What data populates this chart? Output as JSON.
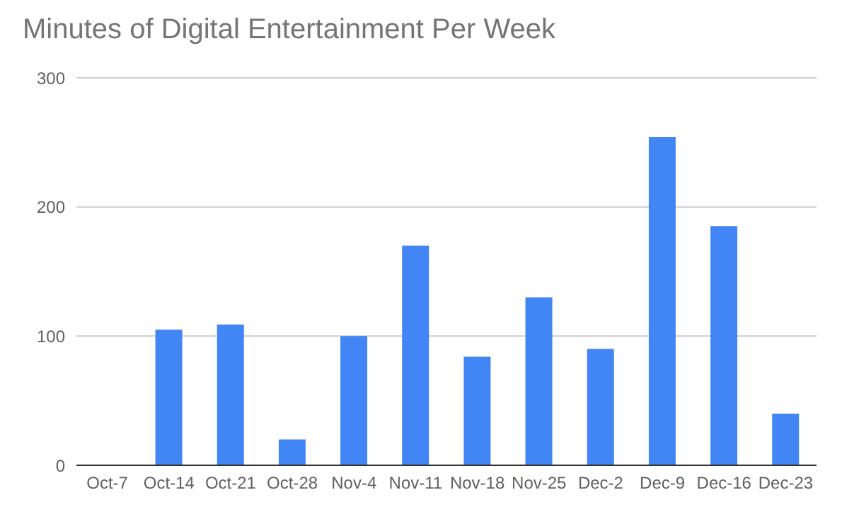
{
  "chart_data": {
    "type": "bar",
    "title": "Minutes of Digital Entertainment Per Week",
    "categories": [
      "Oct-7",
      "Oct-14",
      "Oct-21",
      "Oct-28",
      "Nov-4",
      "Nov-11",
      "Nov-18",
      "Nov-25",
      "Dec-2",
      "Dec-9",
      "Dec-16",
      "Dec-23"
    ],
    "values": [
      0,
      105,
      109,
      20,
      100,
      170,
      84,
      130,
      90,
      254,
      185,
      40
    ],
    "color": "#4285f4",
    "ylim": [
      0,
      300
    ],
    "yticks": [
      0,
      100,
      200,
      300
    ],
    "grid": "y",
    "legend": false
  }
}
